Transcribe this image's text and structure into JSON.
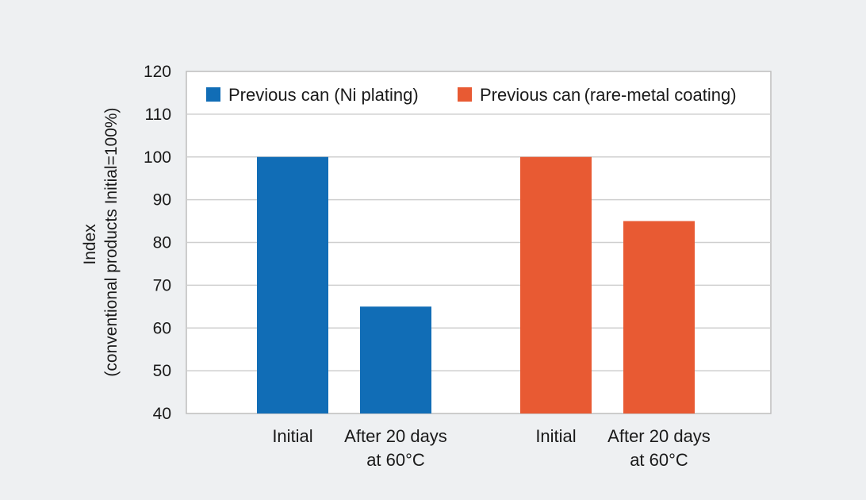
{
  "chart_data": {
    "type": "bar",
    "ylabel_lines": [
      "Index",
      "(conventional products Initial=100%)"
    ],
    "ylim": [
      40,
      120
    ],
    "yticks": [
      40,
      50,
      60,
      70,
      80,
      90,
      100,
      110,
      120
    ],
    "grid": true,
    "legend_position": "top",
    "categories": [
      {
        "lines": [
          "Initial"
        ]
      },
      {
        "lines": [
          "After 20 days",
          "at 60°C"
        ]
      }
    ],
    "series": [
      {
        "name": "Previous can (Ni plating)",
        "color": "#116db6",
        "values": [
          100,
          65
        ]
      },
      {
        "name": "Previous can (rare-metal coating)",
        "color": "#e85a33",
        "values": [
          100,
          85
        ]
      }
    ]
  }
}
